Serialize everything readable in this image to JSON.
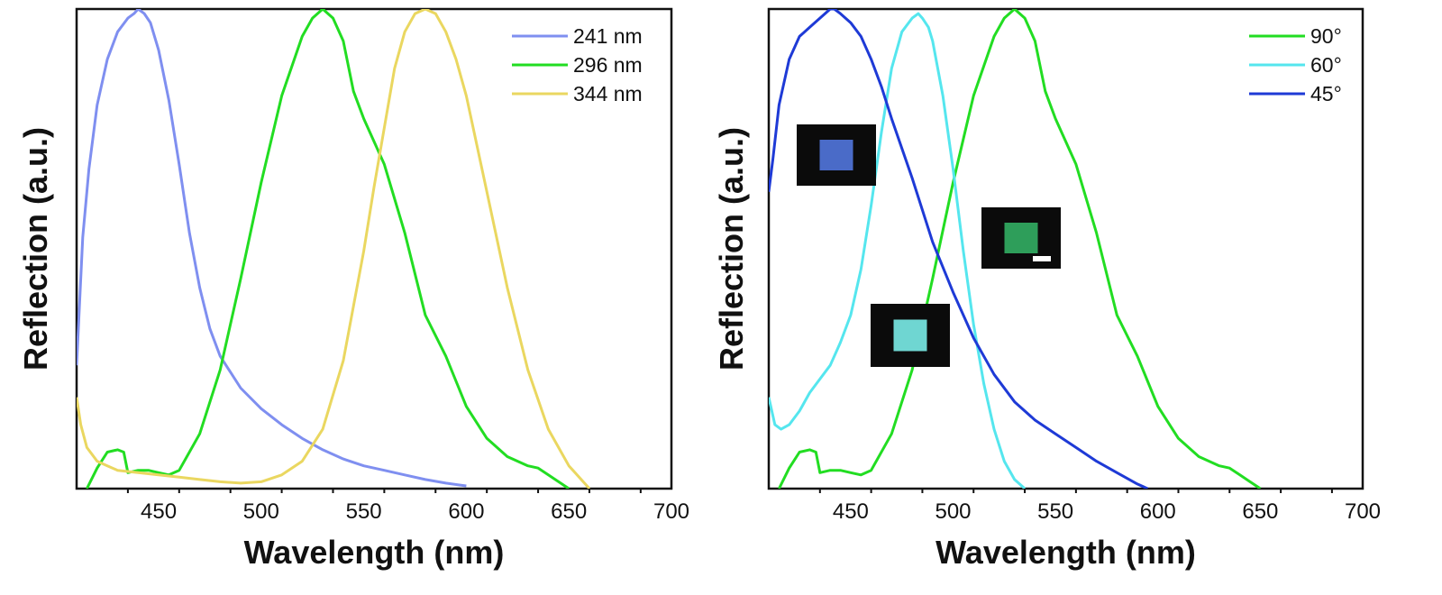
{
  "chart_data": [
    {
      "type": "line",
      "title": "",
      "xlabel": "Wavelength (nm)",
      "ylabel": "Reflection (a.u.)",
      "xlim": [
        410,
        700
      ],
      "ylim": [
        0,
        1.05
      ],
      "xticks": [
        450,
        500,
        550,
        600,
        650,
        700
      ],
      "y_tick_labels": false,
      "grid": false,
      "legend_position": "top-right",
      "series": [
        {
          "name": "241 nm",
          "color": "#7f8ff0",
          "x": [
            410,
            413,
            416,
            420,
            425,
            430,
            435,
            438,
            440,
            443,
            446,
            450,
            455,
            460,
            465,
            470,
            475,
            480,
            490,
            500,
            510,
            520,
            530,
            540,
            550,
            560,
            570,
            580,
            590,
            600
          ],
          "y": [
            0.27,
            0.55,
            0.7,
            0.84,
            0.94,
            1.0,
            1.03,
            1.04,
            1.05,
            1.04,
            1.02,
            0.96,
            0.85,
            0.71,
            0.56,
            0.44,
            0.35,
            0.29,
            0.22,
            0.175,
            0.14,
            0.11,
            0.085,
            0.065,
            0.05,
            0.04,
            0.03,
            0.02,
            0.012,
            0.006
          ]
        },
        {
          "name": "296 nm",
          "color": "#22dd22",
          "x": [
            415,
            420,
            425,
            430,
            433,
            435,
            440,
            445,
            450,
            455,
            460,
            470,
            480,
            490,
            500,
            510,
            520,
            525,
            530,
            535,
            540,
            545,
            550,
            560,
            570,
            580,
            590,
            600,
            610,
            620,
            630,
            635,
            640,
            645,
            650
          ],
          "y": [
            0.0,
            0.045,
            0.08,
            0.085,
            0.08,
            0.035,
            0.04,
            0.04,
            0.035,
            0.03,
            0.04,
            0.12,
            0.26,
            0.46,
            0.67,
            0.86,
            0.99,
            1.03,
            1.05,
            1.03,
            0.98,
            0.87,
            0.81,
            0.71,
            0.56,
            0.38,
            0.29,
            0.18,
            0.11,
            0.07,
            0.05,
            0.045,
            0.03,
            0.015,
            0.0
          ]
        },
        {
          "name": "344 nm",
          "color": "#ead760",
          "x": [
            410,
            412,
            415,
            420,
            425,
            430,
            440,
            450,
            460,
            470,
            480,
            490,
            500,
            510,
            520,
            530,
            540,
            550,
            555,
            560,
            565,
            570,
            575,
            580,
            585,
            590,
            595,
            600,
            610,
            620,
            630,
            640,
            650,
            660
          ],
          "y": [
            0.2,
            0.14,
            0.09,
            0.06,
            0.05,
            0.04,
            0.035,
            0.03,
            0.025,
            0.02,
            0.015,
            0.012,
            0.015,
            0.03,
            0.06,
            0.13,
            0.28,
            0.52,
            0.66,
            0.79,
            0.92,
            1.0,
            1.04,
            1.05,
            1.04,
            1.0,
            0.94,
            0.86,
            0.65,
            0.44,
            0.26,
            0.13,
            0.05,
            0.0
          ]
        }
      ]
    },
    {
      "type": "line",
      "title": "",
      "xlabel": "Wavelength (nm)",
      "ylabel": "Reflection (a.u.)",
      "xlim": [
        410,
        700
      ],
      "ylim": [
        0,
        1.05
      ],
      "xticks": [
        450,
        500,
        550,
        600,
        650,
        700
      ],
      "y_tick_labels": false,
      "grid": false,
      "legend_position": "top-right",
      "insets": [
        {
          "name": "45-degree-sample-photo",
          "swatch": "#4a6bc8"
        },
        {
          "name": "60-degree-sample-photo",
          "swatch": "#6fd6d2"
        },
        {
          "name": "90-degree-sample-photo",
          "swatch": "#2e9e5a",
          "has_scale_bar": true
        }
      ],
      "series": [
        {
          "name": "90°",
          "color": "#22dd22",
          "x": [
            415,
            420,
            425,
            430,
            433,
            435,
            440,
            445,
            450,
            455,
            460,
            470,
            480,
            490,
            500,
            510,
            520,
            525,
            530,
            535,
            540,
            545,
            550,
            560,
            570,
            580,
            590,
            600,
            610,
            620,
            630,
            635,
            640,
            645,
            650
          ],
          "y": [
            0.0,
            0.045,
            0.08,
            0.085,
            0.08,
            0.035,
            0.04,
            0.04,
            0.035,
            0.03,
            0.04,
            0.12,
            0.26,
            0.46,
            0.67,
            0.86,
            0.99,
            1.03,
            1.05,
            1.03,
            0.98,
            0.87,
            0.81,
            0.71,
            0.56,
            0.38,
            0.29,
            0.18,
            0.11,
            0.07,
            0.05,
            0.045,
            0.03,
            0.015,
            0.0
          ]
        },
        {
          "name": "60°",
          "color": "#55e6ee",
          "x": [
            410,
            413,
            416,
            420,
            425,
            430,
            435,
            440,
            445,
            450,
            455,
            460,
            465,
            470,
            475,
            480,
            483,
            485,
            488,
            490,
            495,
            500,
            505,
            510,
            515,
            520,
            525,
            530,
            535
          ],
          "y": [
            0.2,
            0.14,
            0.13,
            0.14,
            0.17,
            0.21,
            0.24,
            0.27,
            0.32,
            0.38,
            0.48,
            0.62,
            0.78,
            0.92,
            1.0,
            1.03,
            1.04,
            1.03,
            1.01,
            0.98,
            0.86,
            0.7,
            0.52,
            0.36,
            0.23,
            0.13,
            0.06,
            0.02,
            0.0
          ]
        },
        {
          "name": "45°",
          "color": "#1e3ad6",
          "x": [
            410,
            412,
            415,
            420,
            425,
            430,
            435,
            440,
            442,
            445,
            450,
            455,
            460,
            465,
            470,
            480,
            490,
            500,
            510,
            520,
            530,
            540,
            550,
            560,
            570,
            580,
            590,
            595
          ],
          "y": [
            0.65,
            0.72,
            0.84,
            0.94,
            0.99,
            1.01,
            1.03,
            1.05,
            1.05,
            1.04,
            1.02,
            0.99,
            0.94,
            0.88,
            0.81,
            0.68,
            0.54,
            0.43,
            0.33,
            0.25,
            0.19,
            0.15,
            0.12,
            0.09,
            0.06,
            0.035,
            0.01,
            0.0
          ]
        }
      ]
    }
  ]
}
